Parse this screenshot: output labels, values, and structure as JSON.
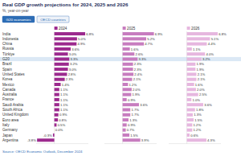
{
  "chart_data": {
    "type": "bar",
    "orientation": "horizontal",
    "title": "Real GDP growth projections for 2024, 2025 and 2026",
    "subtitle": "%, year-on-year",
    "tabs": [
      "G20 economies",
      "OECD countries"
    ],
    "source": "Source: OECD Economic Outlook, December 2024",
    "categories": [
      "India",
      "Indonesia",
      "China",
      "Russia",
      "Türkiye",
      "G20",
      "Brazil",
      "Spain",
      "United States",
      "Korea",
      "Mexico",
      "Canada",
      "Australia",
      "France",
      "Saudi Arabia",
      "South Africa",
      "United Kingdom",
      "Euro area",
      "Italy",
      "Germany",
      "Japan",
      "Argentina"
    ],
    "series": [
      {
        "name": "2024",
        "color": "#9c2a8e",
        "values": [
          6.8,
          5.0,
          4.9,
          3.6,
          3.0,
          3.3,
          3.2,
          3.0,
          2.8,
          2.3,
          1.4,
          1.1,
          1.1,
          1.1,
          1.1,
          1.1,
          0.9,
          0.8,
          0.5,
          0.0,
          -0.3,
          -3.8
        ],
        "value_labels": [
          "6.8%",
          "5.0%",
          "4.9%",
          "3.6%",
          "3.0%",
          "3.3%",
          "3.2%",
          "3.0%",
          "2.8%",
          "2.3%",
          "1.4%",
          "1.1%",
          "1.1%",
          "1.1%",
          "1.1%",
          "1.1%",
          "0.9%",
          "0.8%",
          "0.5%",
          "0.0%",
          "-0.3%",
          "-3.8%"
        ]
      },
      {
        "name": "2025",
        "color": "#c77dbf",
        "values": [
          6.9,
          5.2,
          4.7,
          1.6,
          2.6,
          3.3,
          2.3,
          2.3,
          2.4,
          2.1,
          1.2,
          2.0,
          1.9,
          0.9,
          3.6,
          1.7,
          1.7,
          1.3,
          0.9,
          0.7,
          1.5,
          3.9
        ],
        "value_labels": [
          "6.9%",
          "5.2%",
          "4.7%",
          "1.6%",
          "2.6%",
          "3.3%",
          "2.3%",
          "2.3%",
          "2.4%",
          "2.1%",
          "1.2%",
          "2.0%",
          "1.9%",
          "0.9%",
          "3.6%",
          "1.7%",
          "1.7%",
          "1.3%",
          "0.9%",
          "0.7%",
          "1.5%",
          "3.9%"
        ]
      },
      {
        "name": "2026",
        "color": "#e6b7df",
        "values": [
          6.8,
          5.1,
          4.4,
          1.1,
          4.0,
          3.2,
          1.9,
          1.9,
          2.1,
          2.1,
          1.6,
          2.0,
          2.5,
          1.0,
          3.6,
          1.8,
          1.3,
          1.5,
          1.2,
          1.2,
          0.6,
          4.3
        ],
        "value_labels": [
          "6.8%",
          "5.1%",
          "4.4%",
          "1.1%",
          "4.0%",
          "3.2%",
          "1.9%",
          "1.9%",
          "2.1%",
          "2.1%",
          "1.6%",
          "2.0%",
          "2.5%",
          "1.0%",
          "3.6%",
          "1.8%",
          "1.3%",
          "1.5%",
          "1.2%",
          "1.2%",
          "0.6%",
          "4.3%"
        ]
      }
    ],
    "xlim": [
      -4,
      7.5
    ],
    "tick_labels": false,
    "grid": false,
    "data_labels": true
  }
}
